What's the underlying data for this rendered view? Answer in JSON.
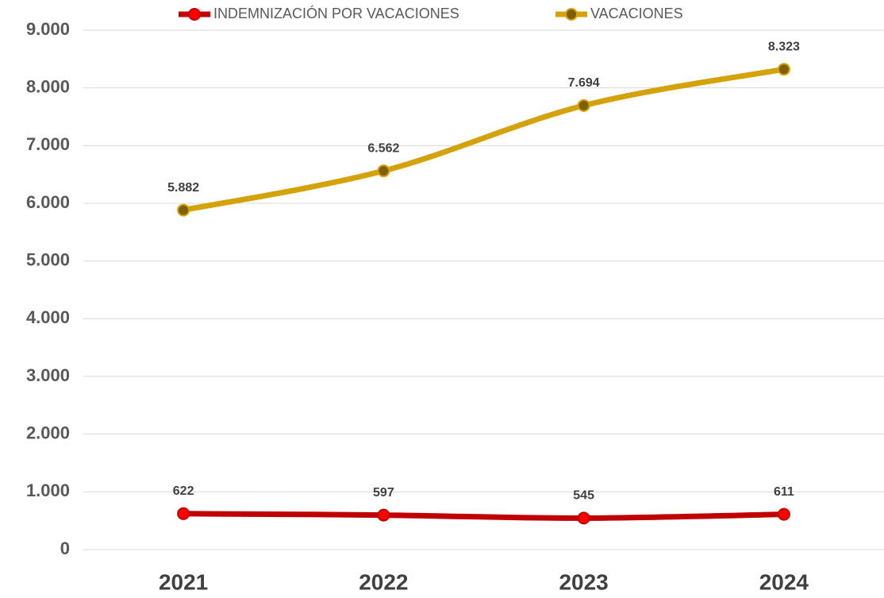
{
  "chart_data": {
    "type": "line",
    "categories": [
      "2021",
      "2022",
      "2023",
      "2024"
    ],
    "series": [
      {
        "name": "INDEMNIZACIÓN POR VACACIONES",
        "color": "#c00000",
        "marker_color": "#ff0000",
        "values": [
          622,
          597,
          545,
          611
        ]
      },
      {
        "name": "VACACIONES",
        "color": "#d4a20a",
        "marker_color": "#7f6000",
        "values": [
          5882,
          6562,
          7694,
          8323
        ],
        "value_labels": [
          "5.882",
          "6.562",
          "7.694",
          "8.323"
        ]
      }
    ],
    "ylim": [
      0,
      9000
    ],
    "yticks": [
      0,
      {
        "value": 1000,
        "label": "1.000"
      },
      {
        "value": 2000,
        "label": "2.000"
      },
      {
        "value": 3000,
        "label": "3.000"
      },
      {
        "value": 4000,
        "label": "4.000"
      },
      {
        "value": 5000,
        "label": "5.000"
      },
      {
        "value": 6000,
        "label": "6.000"
      },
      {
        "value": 7000,
        "label": "7.000"
      },
      {
        "value": 8000,
        "label": "8.000"
      },
      {
        "value": 9000,
        "label": "9.000"
      }
    ],
    "grid": true,
    "legend": "top",
    "smooth": true
  }
}
